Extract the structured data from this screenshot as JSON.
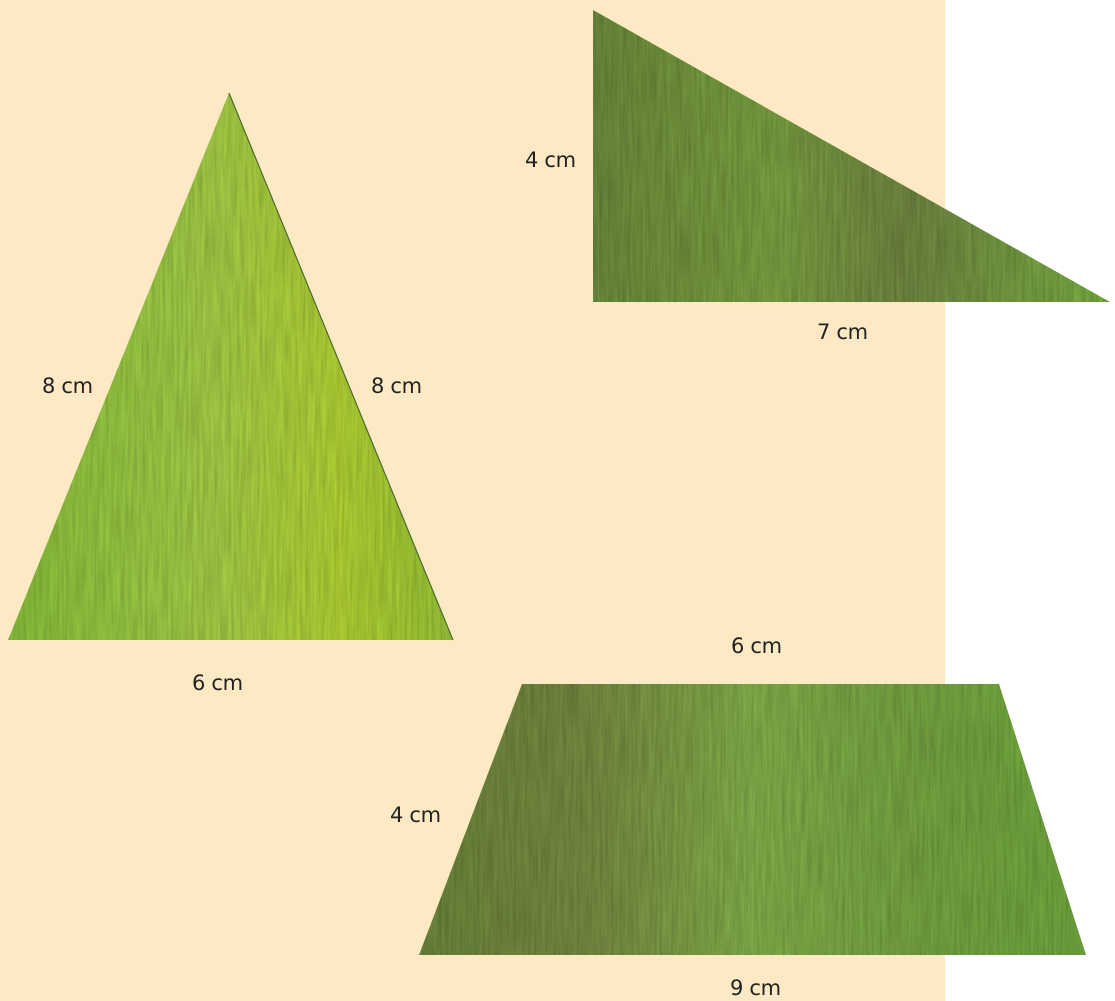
{
  "colors": {
    "background": "#fde9c4",
    "page": "#ffffff",
    "light_green": "#9fcf3a",
    "dark_green": "#6f9a3a",
    "brown_tint": "#7e5a3c"
  },
  "shapes": {
    "isosceles_triangle": {
      "left_side": "8 cm",
      "right_side": "8 cm",
      "base": "6 cm"
    },
    "right_triangle": {
      "height": "4 cm",
      "base": "7 cm"
    },
    "trapezoid": {
      "top": "6 cm",
      "height": "4 cm",
      "bottom": "9 cm"
    }
  }
}
